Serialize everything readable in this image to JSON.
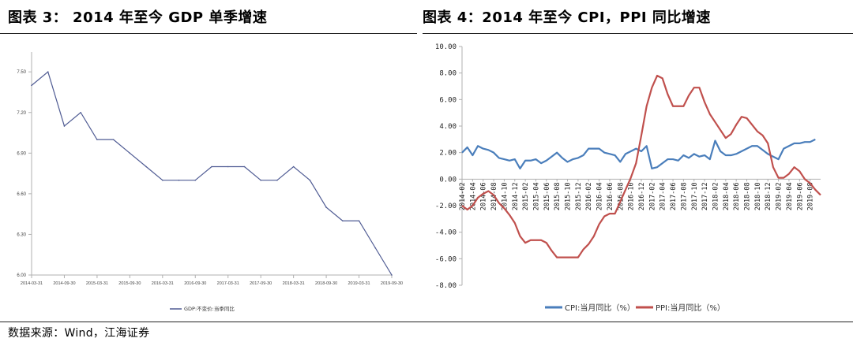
{
  "left_title": "图表 3： 2014 年至今 GDP 单季增速",
  "right_title": "图表 4：2014 年至今 CPI，PPI 同比增速",
  "source": "数据来源：Wind，江海证券",
  "chart_data": [
    {
      "type": "line",
      "title": "图表 3： 2014 年至今 GDP 单季增速",
      "ylim": [
        6.0,
        7.6
      ],
      "y_ticks": [
        "7.50",
        "7.20",
        "6.90",
        "6.60",
        "6.30",
        "6.00"
      ],
      "x_tick_labels": [
        "2014-03-31",
        "2014-09-30",
        "2015-03-31",
        "2015-09-30",
        "2016-03-31",
        "2016-09-30",
        "2017-03-31",
        "2017-09-30",
        "2018-03-31",
        "2018-09-30",
        "2019-03-31",
        "2019-09-30"
      ],
      "grid": false,
      "legend_position": "bottom",
      "color": "#4f5b93",
      "series": [
        {
          "name": "GDP:不变价:当季同比",
          "x": [
            "2014-03-31",
            "2014-06-30",
            "2014-09-30",
            "2014-12-31",
            "2015-03-31",
            "2015-06-30",
            "2015-09-30",
            "2015-12-31",
            "2016-03-31",
            "2016-06-30",
            "2016-09-30",
            "2016-12-31",
            "2017-03-31",
            "2017-06-30",
            "2017-09-30",
            "2017-12-31",
            "2018-03-31",
            "2018-06-30",
            "2018-09-30",
            "2018-12-31",
            "2019-03-31",
            "2019-06-30",
            "2019-09-30"
          ],
          "values": [
            7.4,
            7.5,
            7.1,
            7.2,
            7.0,
            7.0,
            6.9,
            6.8,
            6.7,
            6.7,
            6.7,
            6.8,
            6.8,
            6.8,
            6.7,
            6.7,
            6.8,
            6.7,
            6.5,
            6.4,
            6.4,
            6.2,
            6.0
          ]
        }
      ]
    },
    {
      "type": "line",
      "title": "图表 4：2014 年至今 CPI，PPI 同比增速",
      "ylim": [
        -8.0,
        10.0
      ],
      "y_ticks": [
        "10.00",
        "8.00",
        "6.00",
        "4.00",
        "2.00",
        "0.00",
        "-2.00",
        "-4.00",
        "-6.00",
        "-8.00"
      ],
      "x_tick_labels": [
        "2014-02",
        "2014-04",
        "2014-06",
        "2014-08",
        "2014-10",
        "2014-12",
        "2015-02",
        "2015-04",
        "2015-06",
        "2015-08",
        "2015-10",
        "2015-12",
        "2016-02",
        "2016-04",
        "2016-06",
        "2016-08",
        "2016-10",
        "2016-12",
        "2017-02",
        "2017-04",
        "2017-06",
        "2017-08",
        "2017-10",
        "2017-12",
        "2018-02",
        "2018-04",
        "2018-06",
        "2018-08",
        "2018-10",
        "2018-12",
        "2019-02",
        "2019-04",
        "2019-06",
        "2019-08"
      ],
      "grid": false,
      "legend_position": "bottom",
      "series": [
        {
          "name": "CPI:当月同比（%）",
          "color": "#4a7ebb",
          "start": "2014-02",
          "values": [
            2.0,
            2.4,
            1.8,
            2.5,
            2.3,
            2.2,
            2.0,
            1.6,
            1.5,
            1.4,
            1.5,
            0.8,
            1.4,
            1.4,
            1.5,
            1.2,
            1.4,
            1.7,
            2.0,
            1.6,
            1.3,
            1.5,
            1.6,
            1.8,
            2.3,
            2.3,
            2.3,
            2.0,
            1.9,
            1.8,
            1.3,
            1.9,
            2.1,
            2.3,
            2.1,
            2.5,
            0.8,
            0.9,
            1.2,
            1.5,
            1.5,
            1.4,
            1.8,
            1.6,
            1.9,
            1.7,
            1.8,
            1.5,
            2.9,
            2.1,
            1.8,
            1.8,
            1.9,
            2.1,
            2.3,
            2.5,
            2.5,
            2.2,
            1.9,
            1.7,
            1.5,
            2.3,
            2.5,
            2.7,
            2.7,
            2.8,
            2.8,
            3.0
          ]
        },
        {
          "name": "PPI:当月同比（%）",
          "color": "#c0504d",
          "start": "2014-02",
          "values": [
            -2.0,
            -2.3,
            -2.0,
            -1.4,
            -1.1,
            -0.9,
            -1.2,
            -1.8,
            -2.2,
            -2.7,
            -3.3,
            -4.3,
            -4.8,
            -4.6,
            -4.6,
            -4.6,
            -4.8,
            -5.4,
            -5.9,
            -5.9,
            -5.9,
            -5.9,
            -5.9,
            -5.3,
            -4.9,
            -4.3,
            -3.4,
            -2.8,
            -2.6,
            -2.6,
            -1.7,
            -0.8,
            0.1,
            1.2,
            3.3,
            5.5,
            6.9,
            7.8,
            7.6,
            6.4,
            5.5,
            5.5,
            5.5,
            6.3,
            6.9,
            6.9,
            5.8,
            4.9,
            4.3,
            3.7,
            3.1,
            3.4,
            4.1,
            4.7,
            4.6,
            4.1,
            3.6,
            3.3,
            2.7,
            0.9,
            0.1,
            0.1,
            0.4,
            0.9,
            0.6,
            0.0,
            -0.3,
            -0.8,
            -1.2
          ]
        }
      ]
    }
  ]
}
